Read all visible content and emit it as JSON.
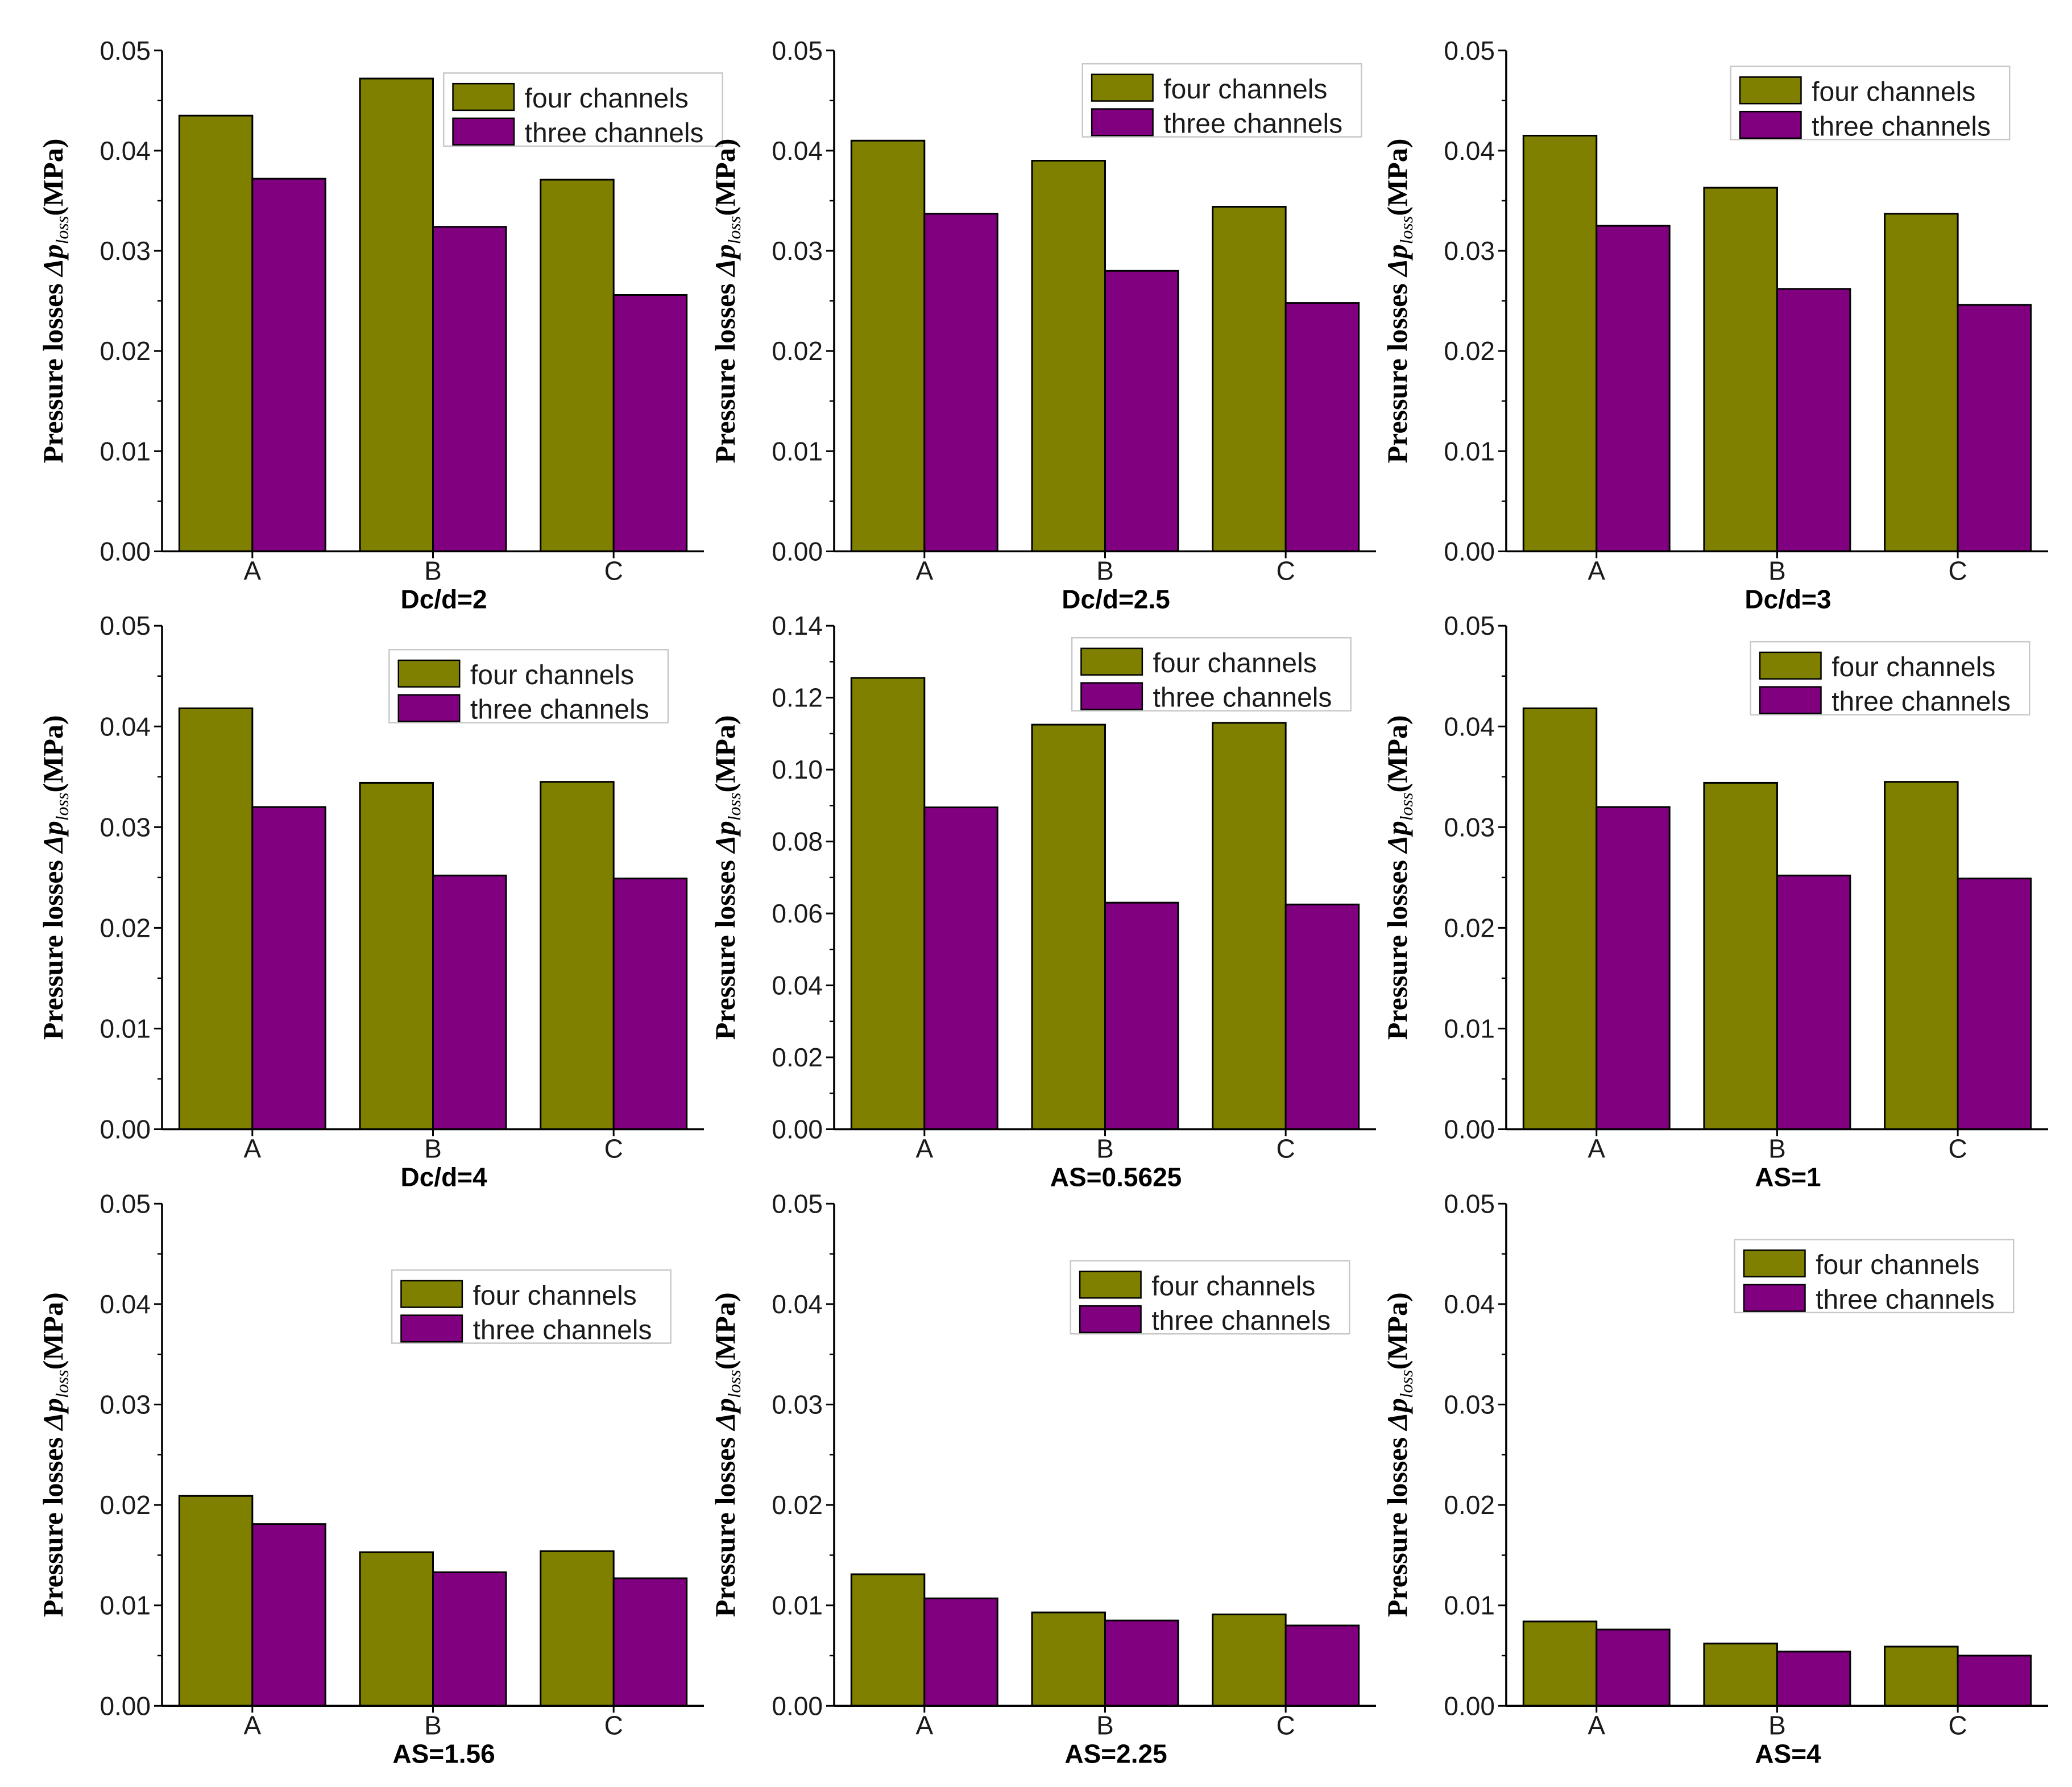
{
  "colors": {
    "four": "#808000",
    "three": "#800080",
    "axis": "#000000"
  },
  "y_label": {
    "prefix": "Pressure losses ",
    "symbol": "Δp",
    "subscript": "loss",
    "unit": "(MPa)"
  },
  "chart_data": [
    {
      "type": "bar",
      "title": "Dc/d=2",
      "categories": [
        "A",
        "B",
        "C"
      ],
      "ylim": [
        0,
        0.05
      ],
      "yticks": [
        "0.00",
        "0.01",
        "0.02",
        "0.03",
        "0.04",
        "0.05"
      ],
      "legend": "top-right",
      "series": [
        {
          "name": "four channels",
          "values": [
            0.0435,
            0.0472,
            0.0371
          ]
        },
        {
          "name": "three channels",
          "values": [
            0.0372,
            0.0324,
            0.0256
          ]
        }
      ]
    },
    {
      "type": "bar",
      "title": "Dc/d=2.5",
      "categories": [
        "A",
        "B",
        "C"
      ],
      "ylim": [
        0,
        0.05
      ],
      "yticks": [
        "0.00",
        "0.01",
        "0.02",
        "0.03",
        "0.04",
        "0.05"
      ],
      "legend": "top-right",
      "series": [
        {
          "name": "four channels",
          "values": [
            0.041,
            0.039,
            0.0344
          ]
        },
        {
          "name": "three channels",
          "values": [
            0.0337,
            0.028,
            0.0248
          ]
        }
      ]
    },
    {
      "type": "bar",
      "title": "Dc/d=3",
      "categories": [
        "A",
        "B",
        "C"
      ],
      "ylim": [
        0,
        0.05
      ],
      "yticks": [
        "0.00",
        "0.01",
        "0.02",
        "0.03",
        "0.04",
        "0.05"
      ],
      "legend": "top-right",
      "series": [
        {
          "name": "four channels",
          "values": [
            0.0415,
            0.0363,
            0.0337
          ]
        },
        {
          "name": "three channels",
          "values": [
            0.0325,
            0.0262,
            0.0246
          ]
        }
      ]
    },
    {
      "type": "bar",
      "title": "Dc/d=4",
      "categories": [
        "A",
        "B",
        "C"
      ],
      "ylim": [
        0,
        0.05
      ],
      "yticks": [
        "0.00",
        "0.01",
        "0.02",
        "0.03",
        "0.04",
        "0.05"
      ],
      "legend": "top-right",
      "series": [
        {
          "name": "four channels",
          "values": [
            0.0418,
            0.0344,
            0.0345
          ]
        },
        {
          "name": "three channels",
          "values": [
            0.032,
            0.0252,
            0.0249
          ]
        }
      ]
    },
    {
      "type": "bar",
      "title": "AS=0.5625",
      "categories": [
        "A",
        "B",
        "C"
      ],
      "ylim": [
        0,
        0.14
      ],
      "yticks": [
        "0.00",
        "0.02",
        "0.04",
        "0.06",
        "0.08",
        "0.10",
        "0.12",
        "0.14"
      ],
      "legend": "top-right",
      "series": [
        {
          "name": "four channels",
          "values": [
            0.1255,
            0.1125,
            0.113
          ]
        },
        {
          "name": "three channels",
          "values": [
            0.0895,
            0.063,
            0.0625
          ]
        }
      ]
    },
    {
      "type": "bar",
      "title": "AS=1",
      "categories": [
        "A",
        "B",
        "C"
      ],
      "ylim": [
        0,
        0.05
      ],
      "yticks": [
        "0.00",
        "0.01",
        "0.02",
        "0.03",
        "0.04",
        "0.05"
      ],
      "legend": "top-right",
      "series": [
        {
          "name": "four channels",
          "values": [
            0.0418,
            0.0344,
            0.0345
          ]
        },
        {
          "name": "three channels",
          "values": [
            0.032,
            0.0252,
            0.0249
          ]
        }
      ]
    },
    {
      "type": "bar",
      "title": "AS=1.56",
      "categories": [
        "A",
        "B",
        "C"
      ],
      "ylim": [
        0,
        0.05
      ],
      "yticks": [
        "0.00",
        "0.01",
        "0.02",
        "0.03",
        "0.04",
        "0.05"
      ],
      "legend": "top-right",
      "series": [
        {
          "name": "four channels",
          "values": [
            0.0209,
            0.0153,
            0.0154
          ]
        },
        {
          "name": "three channels",
          "values": [
            0.0181,
            0.0133,
            0.0127
          ]
        }
      ]
    },
    {
      "type": "bar",
      "title": "AS=2.25",
      "categories": [
        "A",
        "B",
        "C"
      ],
      "ylim": [
        0,
        0.05
      ],
      "yticks": [
        "0.00",
        "0.01",
        "0.02",
        "0.03",
        "0.04",
        "0.05"
      ],
      "legend": "top-right",
      "series": [
        {
          "name": "four channels",
          "values": [
            0.0131,
            0.0093,
            0.0091
          ]
        },
        {
          "name": "three channels",
          "values": [
            0.0107,
            0.0085,
            0.008
          ]
        }
      ]
    },
    {
      "type": "bar",
      "title": "AS=4",
      "categories": [
        "A",
        "B",
        "C"
      ],
      "ylim": [
        0,
        0.05
      ],
      "yticks": [
        "0.00",
        "0.01",
        "0.02",
        "0.03",
        "0.04",
        "0.05"
      ],
      "legend": "top-right",
      "series": [
        {
          "name": "four channels",
          "values": [
            0.0084,
            0.0062,
            0.0059
          ]
        },
        {
          "name": "three channels",
          "values": [
            0.0076,
            0.0054,
            0.005
          ]
        }
      ]
    }
  ]
}
